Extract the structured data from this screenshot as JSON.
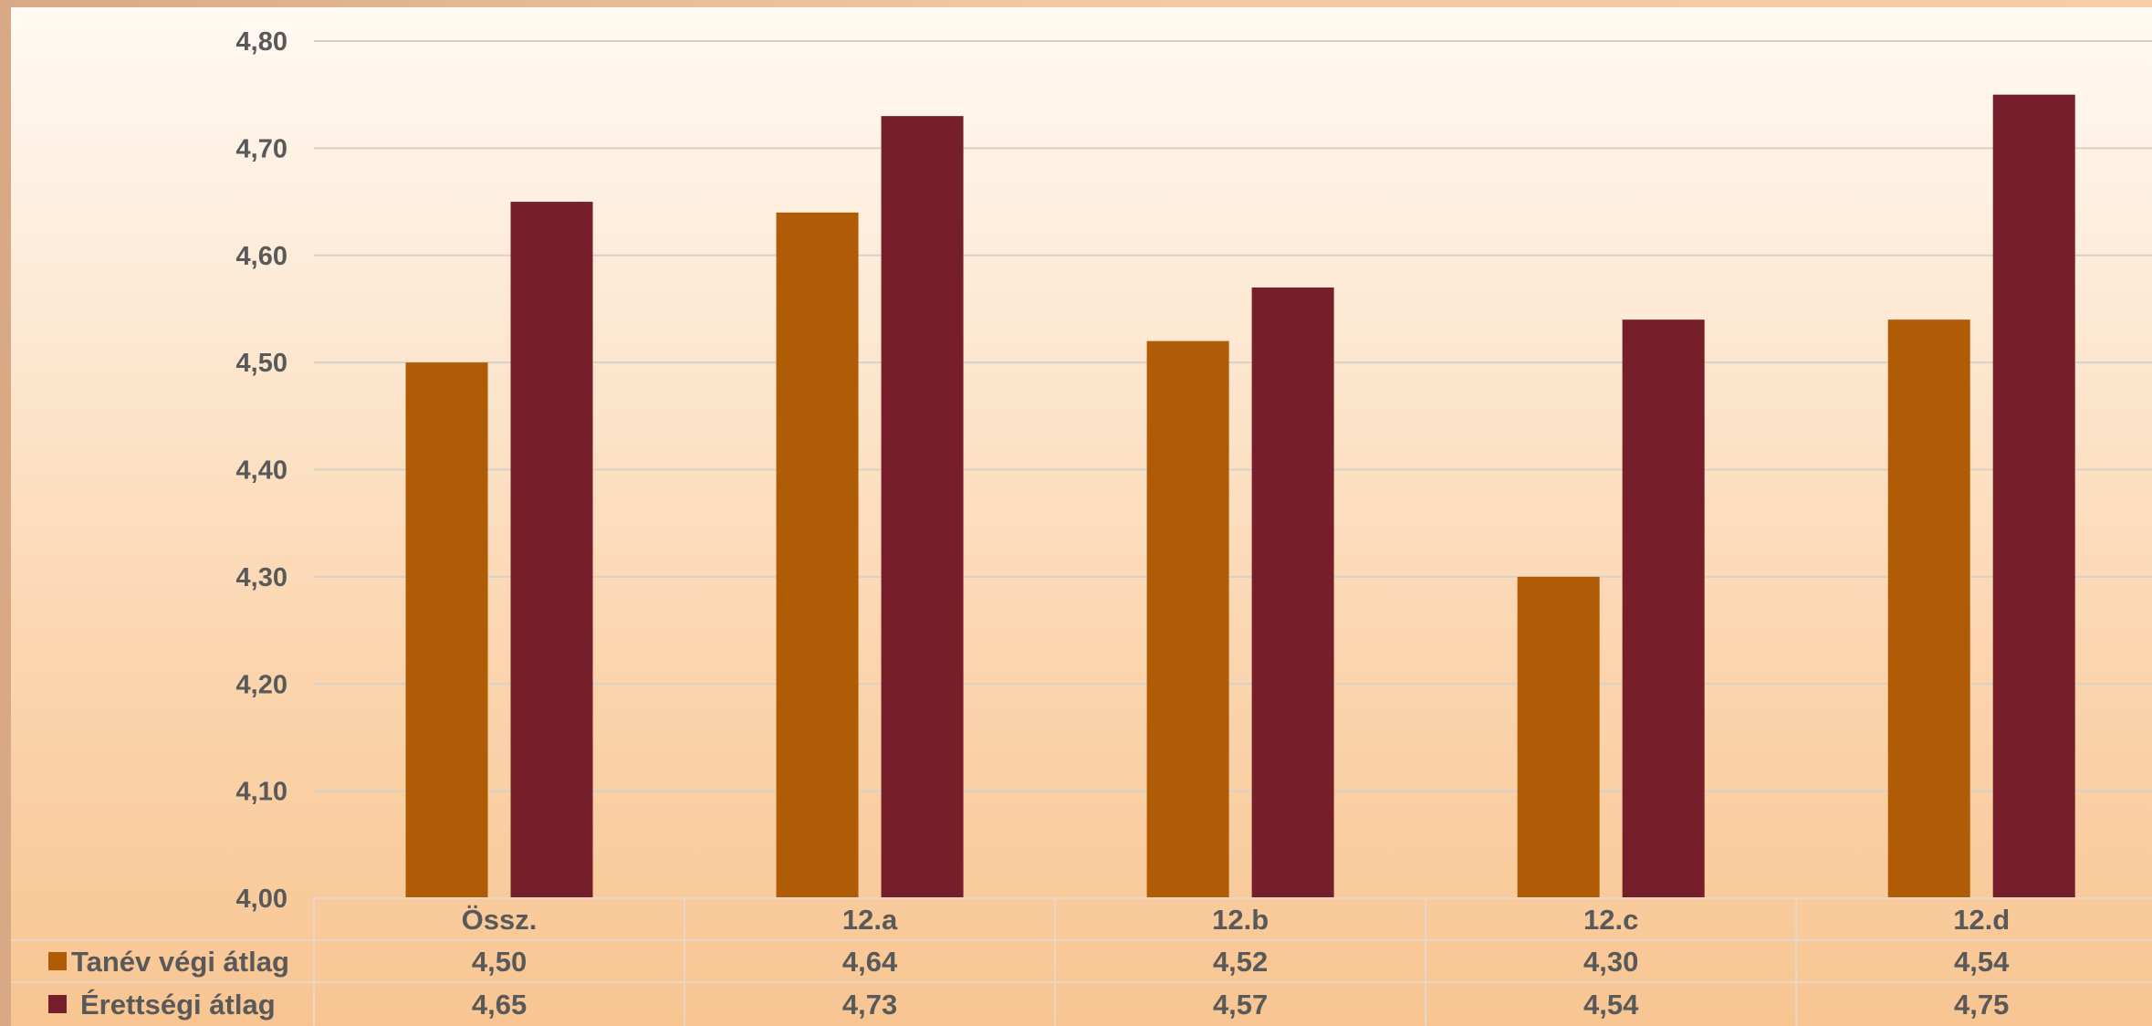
{
  "chart_data": {
    "type": "bar",
    "categories": [
      "Össz.",
      "12.a",
      "12.b",
      "12.c",
      "12.d"
    ],
    "series": [
      {
        "name": "Tanév végi átlag",
        "values": [
          4.5,
          4.64,
          4.52,
          4.3,
          4.54
        ],
        "labels": [
          "4,50",
          "4,64",
          "4,52",
          "4,30",
          "4,54"
        ],
        "color": "#b05c06"
      },
      {
        "name": "Érettségi átlag",
        "values": [
          4.65,
          4.73,
          4.57,
          4.54,
          4.75
        ],
        "labels": [
          "4,65",
          "4,73",
          "4,57",
          "4,54",
          "4,75"
        ],
        "color": "#761e29"
      }
    ],
    "ylim": [
      4.0,
      4.8
    ],
    "yticks": [
      "4,00",
      "4,10",
      "4,20",
      "4,30",
      "4,40",
      "4,50",
      "4,60",
      "4,70",
      "4,80"
    ],
    "grid": true,
    "legend": "data-table-left"
  }
}
